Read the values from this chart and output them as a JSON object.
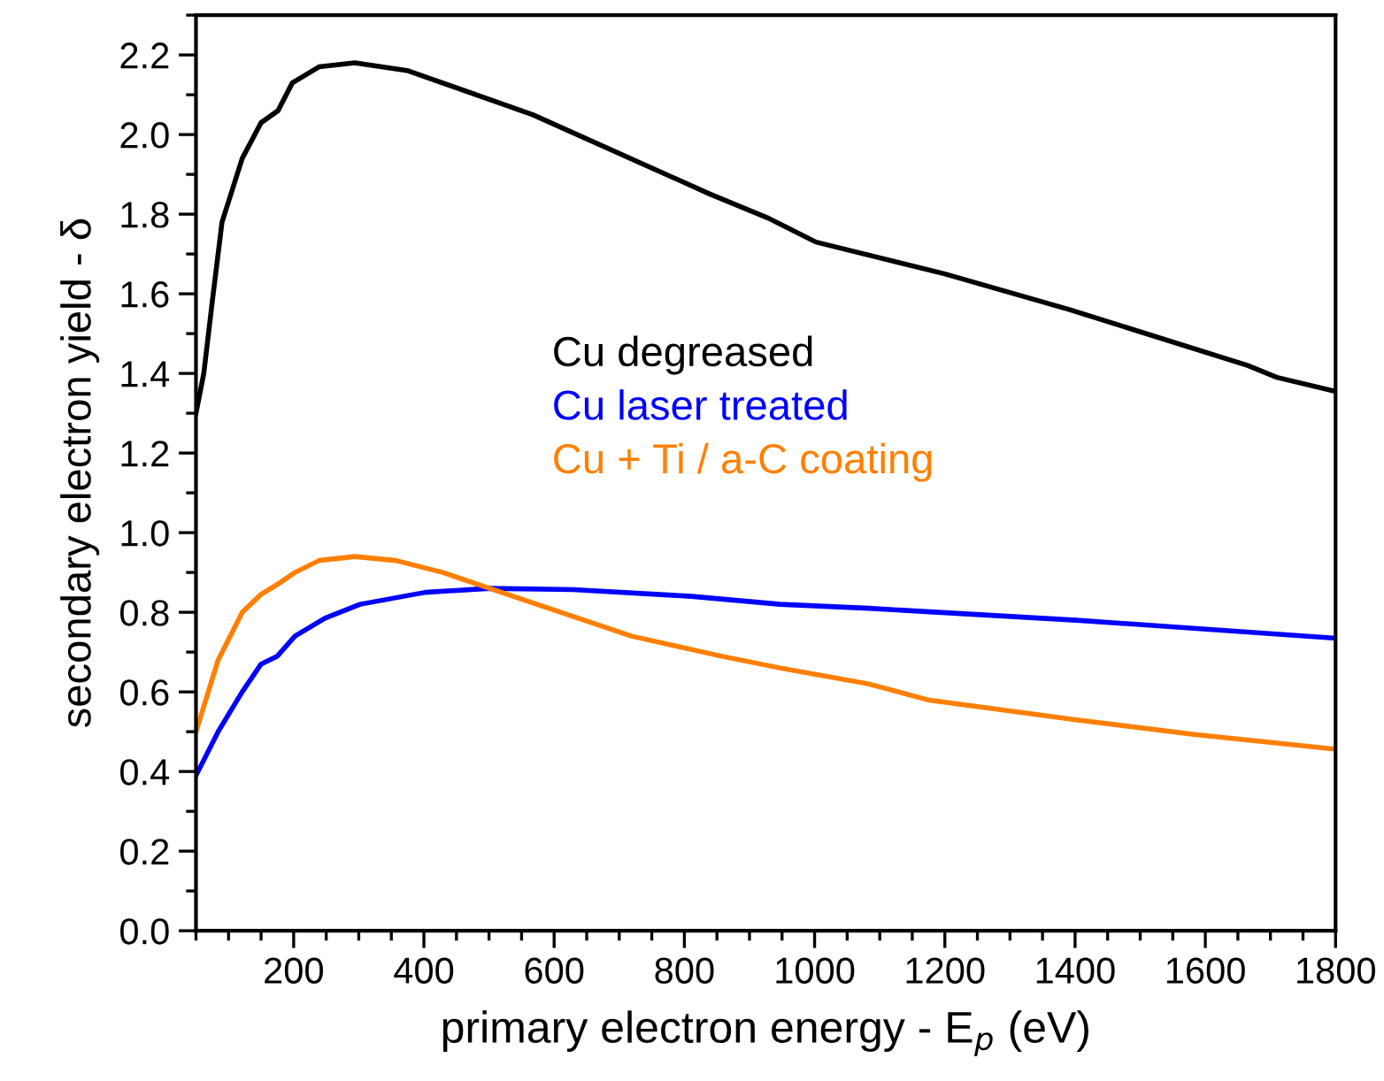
{
  "chart_data": {
    "type": "line",
    "xlabel": "primary electron energy - E$_{p}$ (eV)",
    "ylabel": "secondary electron yield - δ",
    "xlim": [
      50,
      1800
    ],
    "xticks": [
      200,
      400,
      600,
      800,
      1000,
      1200,
      1400,
      1600,
      1800
    ],
    "ylim": [
      0,
      2.3
    ],
    "yticks": [
      {
        "value": 0,
        "label": "0.0"
      },
      0.2,
      0.4,
      0.6,
      0.8,
      {
        "value": 1,
        "label": "1.0"
      },
      1.2,
      1.4,
      1.6,
      1.8,
      {
        "value": 2,
        "label": "2.0"
      },
      2.2
    ],
    "grid": false,
    "legend": "center",
    "marker": "none",
    "line_style": "solid",
    "series": [
      {
        "name": "Cu degreased",
        "color": "#000000",
        "x": [
          50,
          62,
          75,
          90,
          121,
          150,
          176,
          198,
          239,
          294,
          376,
          567,
          840,
          929,
          1002,
          1200,
          1392,
          1665,
          1710,
          1800
        ],
        "values": [
          1.3,
          1.4,
          1.58,
          1.78,
          1.94,
          2.03,
          2.06,
          2.13,
          2.17,
          2.18,
          2.16,
          2.05,
          1.85,
          1.79,
          1.73,
          1.65,
          1.56,
          1.42,
          1.39,
          1.355
        ]
      },
      {
        "name": "Cu laser treated",
        "color": "#0000ff",
        "x": [
          50,
          84,
          121,
          150,
          175,
          202,
          248,
          302,
          402,
          501,
          629,
          811,
          947,
          1083,
          1402,
          1800
        ],
        "values": [
          0.39,
          0.5,
          0.6,
          0.67,
          0.69,
          0.74,
          0.785,
          0.82,
          0.85,
          0.86,
          0.857,
          0.84,
          0.82,
          0.81,
          0.78,
          0.735
        ]
      },
      {
        "name": "Cu + Ti / a-C coating",
        "color": "#ff7f00",
        "x": [
          50,
          84,
          121,
          150,
          175,
          202,
          239,
          294,
          357,
          429,
          501,
          610,
          719,
          856,
          947,
          1083,
          1174,
          1402,
          1583,
          1800
        ],
        "values": [
          0.5,
          0.68,
          0.8,
          0.845,
          0.87,
          0.9,
          0.93,
          0.94,
          0.93,
          0.9,
          0.86,
          0.8,
          0.74,
          0.69,
          0.66,
          0.62,
          0.58,
          0.53,
          0.493,
          0.456
        ]
      }
    ]
  }
}
